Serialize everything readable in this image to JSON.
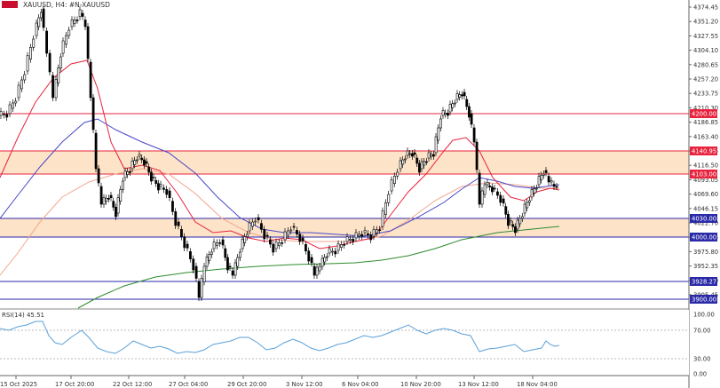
{
  "header": {
    "symbol_title": "XAUUSD, H4:  #N-XAUUSD"
  },
  "main_price_labels": [
    "4374.45",
    "4351.20",
    "4327.55",
    "4304.10",
    "4280.65",
    "4257.20",
    "4233.75",
    "4210.30",
    "4186.85",
    "4163.40",
    "4140.15",
    "4116.50",
    "4093.05",
    "4069.60",
    "4046.15",
    "4022.70",
    "3999.25",
    "3975.80",
    "3952.35",
    "3928.90",
    "3905.45"
  ],
  "level_tags": [
    {
      "label": "4200.00",
      "color": "#e8233d"
    },
    {
      "label": "4140.95",
      "color": "#e8233d"
    },
    {
      "label": "4103.00",
      "color": "#e8233d"
    },
    {
      "label": "4030.00",
      "color": "#2a2aa8"
    },
    {
      "label": "4000.00",
      "color": "#2a2aa8"
    },
    {
      "label": "3928.27",
      "color": "#2a2aa8"
    },
    {
      "label": "3900.00",
      "color": "#2a2aa8"
    }
  ],
  "rsi": {
    "title": "RSI(14) 45.51",
    "scale_labels": [
      "100.00",
      "70.00",
      "30.00",
      "0.00"
    ]
  },
  "time_labels": [
    "15 Oct 2025",
    "17 Oct 20:00",
    "22 Oct 12:00",
    "27 Oct 04:00",
    "29 Oct 20:00",
    "3 Nov 12:00",
    "6 Nov 04:00",
    "10 Nov 20:00",
    "13 Nov 12:00",
    "18 Nov 04:00"
  ],
  "colors": {
    "zone": "#fde3c8",
    "resistance": "#e8233d",
    "support": "#2a2aa8",
    "ma_fast": "#e8233d",
    "ma_mid": "#4848c8",
    "ma_slow": "#2e8b2e",
    "ma_faint": "#f3a58c",
    "rsi_line": "#5aa0d8"
  }
}
